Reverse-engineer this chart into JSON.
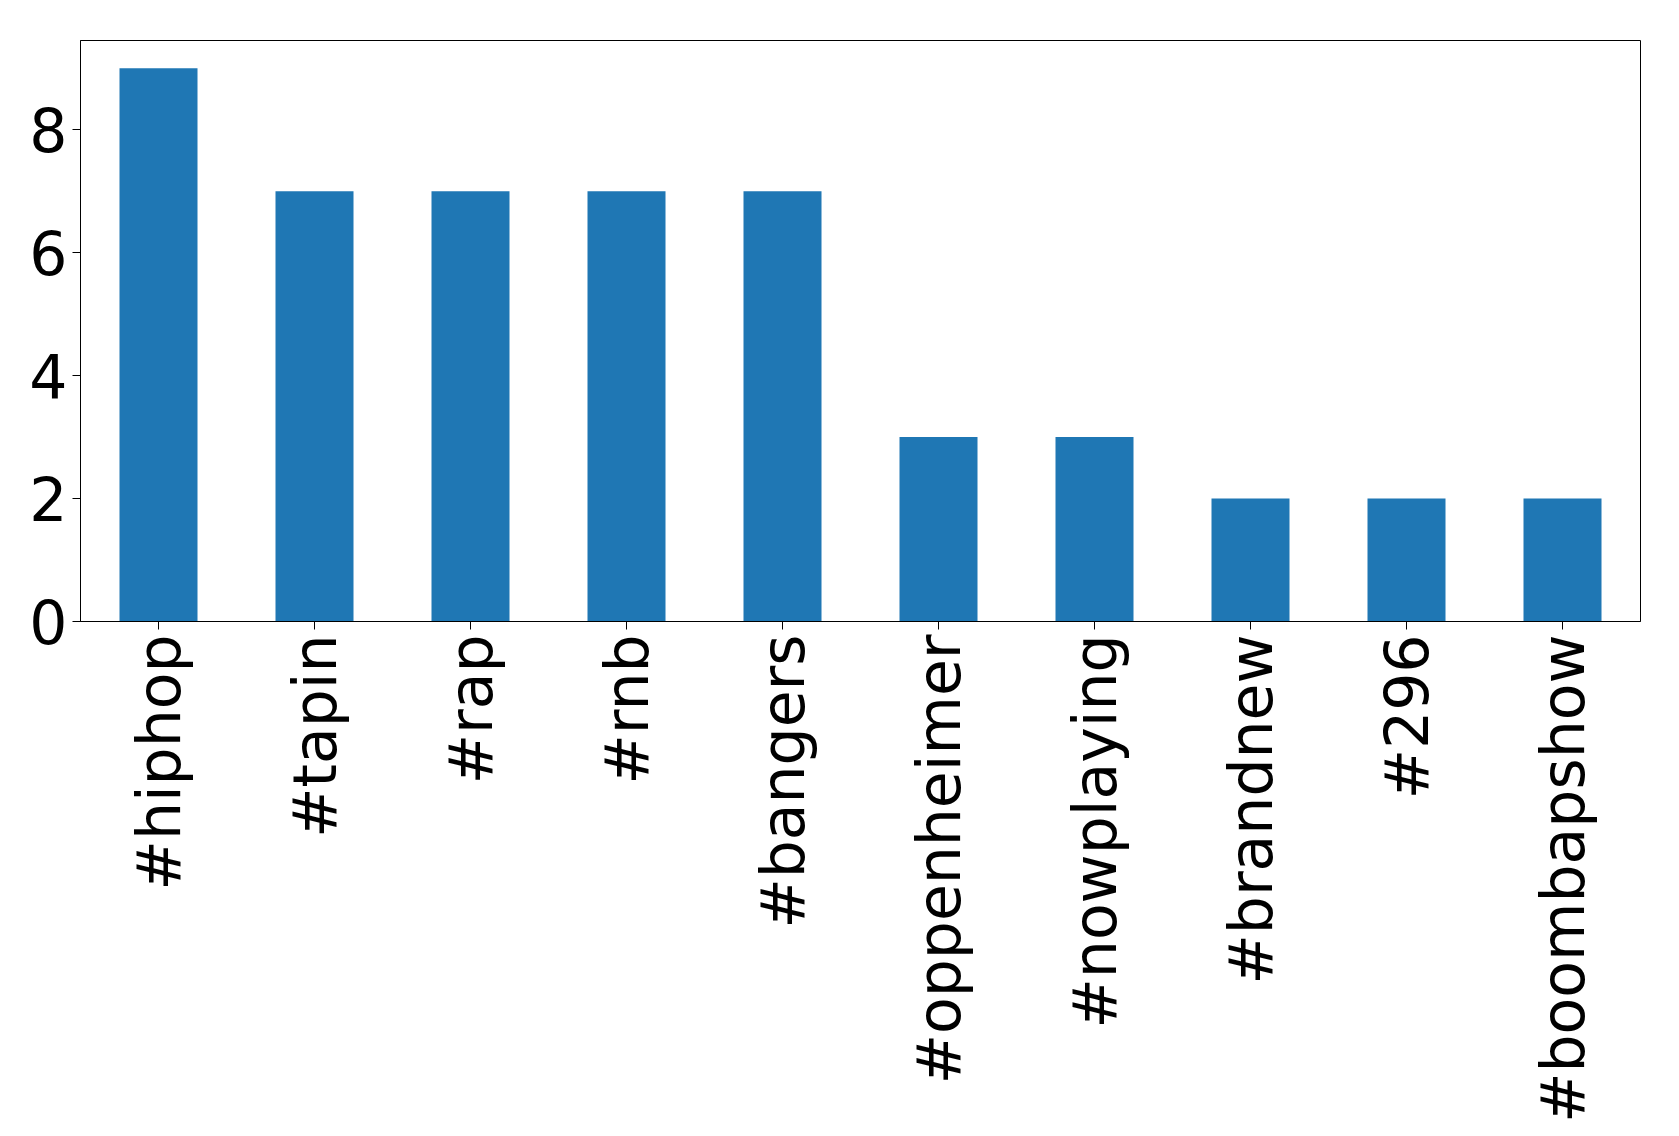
{
  "chart_data": {
    "type": "bar",
    "categories": [
      "#hiphop",
      "#tapin",
      "#rap",
      "#rnb",
      "#bangers",
      "#oppenheimer",
      "#nowplaying",
      "#brandnew",
      "#296",
      "#boombapshow"
    ],
    "values": [
      9,
      7,
      7,
      7,
      7,
      3,
      3,
      2,
      2,
      2
    ],
    "color": "#1f77b4",
    "ylim": [
      0,
      9.45
    ],
    "yticks": [
      0,
      2,
      4,
      6,
      8
    ],
    "grid": false
  }
}
